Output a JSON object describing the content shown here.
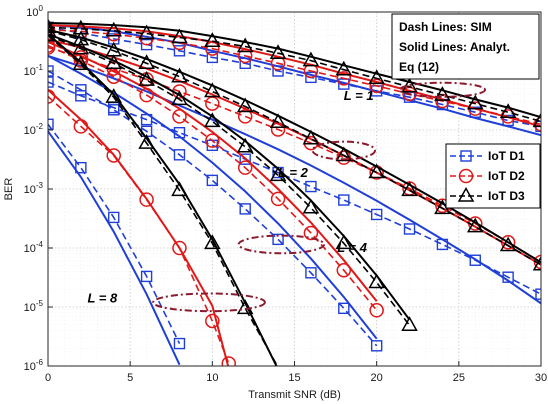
{
  "chart_data": {
    "type": "line",
    "title": "",
    "xlabel": "Transmit SNR (dB)",
    "ylabel": "BER",
    "xlim": [
      0,
      30
    ],
    "ylim": [
      1e-06,
      1
    ],
    "yscale": "log",
    "grid": true,
    "x_ticks": [
      0,
      5,
      10,
      15,
      20,
      25,
      30
    ],
    "y_ticks": [
      {
        "value": 1,
        "base": "10",
        "exp": "0"
      },
      {
        "value": 0.1,
        "base": "10",
        "exp": "-1"
      },
      {
        "value": 0.01,
        "base": "10",
        "exp": "-2"
      },
      {
        "value": 0.001,
        "base": "10",
        "exp": "-3"
      },
      {
        "value": 0.0001,
        "base": "10",
        "exp": "-4"
      },
      {
        "value": 1e-05,
        "base": "10",
        "exp": "-5"
      },
      {
        "value": 1e-06,
        "base": "10",
        "exp": "-6"
      }
    ],
    "legend": {
      "position": "right",
      "entries": [
        {
          "label": "IoT D1",
          "color": "#1f3fd8",
          "marker": "square"
        },
        {
          "label": "IoT D2",
          "color": "#e01818",
          "marker": "circle"
        },
        {
          "label": "IoT D3",
          "color": "#000000",
          "marker": "triangle"
        }
      ]
    },
    "note_lines": [
      "Dash Lines: SIM",
      "Solid Lines: Analyt.",
      "Eq (12)"
    ],
    "groups": [
      {
        "label": "L = 1",
        "label_at": [
          18.0,
          0.032
        ],
        "ellipse": {
          "cx": 24.0,
          "cy": 0.048,
          "rx_db": 2.6,
          "ry_decades": 0.12
        },
        "series": [
          {
            "device": "IoT D1",
            "color": "#1f3fd8",
            "marker": "square",
            "x": [
              0,
              2,
              4,
              6,
              8,
              10,
              12,
              14,
              16,
              18,
              20,
              22,
              24,
              26,
              28,
              30
            ],
            "sim": [
              0.55,
              0.44,
              0.35,
              0.28,
              0.22,
              0.17,
              0.135,
              0.1,
              0.078,
              0.06,
              0.046,
              0.036,
              0.027,
              0.02,
              0.0145,
              0.0115
            ],
            "analytic": [
              0.6,
              0.55,
              0.47,
              0.38,
              0.3,
              0.22,
              0.165,
              0.12,
              0.086,
              0.063,
              0.045,
              0.032,
              0.023,
              0.016,
              0.0115,
              0.0082
            ]
          },
          {
            "device": "IoT D2",
            "color": "#e01818",
            "marker": "circle",
            "x": [
              0,
              2,
              4,
              6,
              8,
              10,
              12,
              14,
              16,
              18,
              20,
              22,
              24,
              26,
              28,
              30
            ],
            "sim": [
              0.5,
              0.47,
              0.42,
              0.36,
              0.3,
              0.24,
              0.18,
              0.135,
              0.1,
              0.075,
              0.056,
              0.041,
              0.031,
              0.023,
              0.017,
              0.0125
            ],
            "analytic": [
              0.6,
              0.57,
              0.53,
              0.47,
              0.39,
              0.31,
              0.235,
              0.175,
              0.128,
              0.09,
              0.065,
              0.046,
              0.033,
              0.023,
              0.0165,
              0.0115
            ]
          },
          {
            "device": "IoT D3",
            "color": "#000000",
            "marker": "triangle",
            "x": [
              0,
              2,
              4,
              6,
              8,
              10,
              12,
              14,
              16,
              18,
              20,
              22,
              24,
              26,
              28,
              30
            ],
            "sim": [
              0.55,
              0.52,
              0.48,
              0.43,
              0.37,
              0.32,
              0.26,
              0.2,
              0.15,
              0.105,
              0.075,
              0.054,
              0.039,
              0.028,
              0.02,
              0.014
            ],
            "analytic": [
              0.65,
              0.63,
              0.6,
              0.55,
              0.48,
              0.39,
              0.31,
              0.24,
              0.175,
              0.125,
              0.09,
              0.065,
              0.047,
              0.033,
              0.024,
              0.0165
            ]
          }
        ]
      },
      {
        "label": "L = 2",
        "label_at": [
          14.0,
          0.0016
        ],
        "ellipse": {
          "cx": 18.0,
          "cy": 0.0045,
          "rx_db": 1.9,
          "ry_decades": 0.15
        },
        "series": [
          {
            "device": "IoT D1",
            "color": "#1f3fd8",
            "marker": "square",
            "x": [
              0,
              2,
              4,
              6,
              8,
              10,
              12,
              14,
              16,
              18,
              20,
              22,
              24,
              26,
              28,
              30
            ],
            "sim": [
              0.065,
              0.038,
              0.024,
              0.015,
              0.009,
              0.0055,
              0.0032,
              0.0019,
              0.0011,
              0.00065,
              0.00037,
              0.00021,
              0.000115,
              6.2e-05,
              3.2e-05,
              1.65e-05
            ],
            "analytic": [
              0.18,
              0.12,
              0.075,
              0.045,
              0.026,
              0.015,
              0.0085,
              0.0047,
              0.0025,
              0.00128,
              0.00063,
              0.0003,
              0.00014,
              6.4e-05,
              2.8e-05,
              1.15e-05
            ]
          },
          {
            "device": "IoT D2",
            "color": "#e01818",
            "marker": "circle",
            "x": [
              0,
              2,
              4,
              6,
              8,
              10,
              12,
              14,
              16,
              18,
              20,
              22,
              24,
              26,
              28,
              30
            ],
            "sim": [
              0.25,
              0.17,
              0.11,
              0.072,
              0.045,
              0.028,
              0.017,
              0.0102,
              0.006,
              0.0034,
              0.0019,
              0.00102,
              0.00052,
              0.00026,
              0.000125,
              5.8e-05
            ],
            "analytic": [
              0.34,
              0.25,
              0.17,
              0.11,
              0.068,
              0.04,
              0.023,
              0.0128,
              0.007,
              0.0037,
              0.0019,
              0.00095,
              0.00047,
              0.00023,
              0.00011,
              5.2e-05
            ]
          },
          {
            "device": "IoT D3",
            "color": "#000000",
            "marker": "triangle",
            "x": [
              0,
              2,
              4,
              6,
              8,
              10,
              12,
              14,
              16,
              18,
              20,
              22,
              24,
              26,
              28,
              30
            ],
            "sim": [
              0.48,
              0.34,
              0.22,
              0.135,
              0.08,
              0.045,
              0.025,
              0.0135,
              0.0071,
              0.0037,
              0.0019,
              0.00095,
              0.00047,
              0.00023,
              0.00011,
              5.2e-05
            ],
            "analytic": [
              0.5,
              0.37,
              0.25,
              0.16,
              0.097,
              0.057,
              0.032,
              0.0175,
              0.0093,
              0.0048,
              0.0024,
              0.00118,
              0.00057,
              0.00027,
              0.000125,
              5.7e-05
            ]
          }
        ]
      },
      {
        "label": "L = 4",
        "label_at": [
          17.6,
          8.5e-05
        ],
        "ellipse": {
          "cx": 14.2,
          "cy": 0.000115,
          "rx_db": 2.6,
          "ry_decades": 0.15
        },
        "series": [
          {
            "device": "IoT D1",
            "color": "#1f3fd8",
            "marker": "square",
            "x": [
              0,
              2,
              4,
              6,
              8,
              10,
              12,
              14,
              16,
              18,
              20
            ],
            "sim": [
              0.1,
              0.048,
              0.022,
              0.0095,
              0.0038,
              0.0014,
              0.00046,
              0.00014,
              3.8e-05,
              9.5e-06,
              2.2e-06
            ],
            "analytic": [
              0.18,
              0.09,
              0.043,
              0.019,
              0.0078,
              0.0028,
              0.00091,
              0.00026,
              6.6e-05,
              1.48e-05,
              2.9e-06
            ]
          },
          {
            "device": "IoT D2",
            "color": "#e01818",
            "marker": "circle",
            "x": [
              0,
              2,
              4,
              6,
              8,
              10,
              12,
              14,
              16,
              18,
              20
            ],
            "sim": [
              0.27,
              0.15,
              0.08,
              0.039,
              0.017,
              0.0066,
              0.0023,
              0.00068,
              0.00018,
              4.2e-05,
              8.8e-06
            ],
            "analytic": [
              0.31,
              0.18,
              0.099,
              0.05,
              0.023,
              0.0093,
              0.0033,
              0.001,
              0.00027,
              6.2e-05,
              1.25e-05
            ]
          },
          {
            "device": "IoT D3",
            "color": "#000000",
            "marker": "triangle",
            "x": [
              0,
              2,
              4,
              6,
              8,
              10,
              12,
              14,
              16,
              18,
              20,
              22
            ],
            "sim": [
              0.4,
              0.24,
              0.135,
              0.07,
              0.033,
              0.014,
              0.0052,
              0.0017,
              0.00048,
              0.00012,
              2.6e-05,
              4.9e-06
            ],
            "analytic": [
              0.42,
              0.26,
              0.15,
              0.08,
              0.039,
              0.017,
              0.0065,
              0.0022,
              0.00064,
              0.00016,
              3.4e-05,
              6.1e-06
            ]
          }
        ]
      },
      {
        "label": "L = 8",
        "label_at": [
          2.4,
          1.2e-05
        ],
        "ellipse": {
          "cx": 9.8,
          "cy": 1.2e-05,
          "rx_db": 3.4,
          "ry_decades": 0.15
        },
        "series": [
          {
            "device": "IoT D1",
            "color": "#1f3fd8",
            "marker": "square",
            "x": [
              0,
              2,
              4,
              6,
              8
            ],
            "sim": [
              0.0125,
              0.0023,
              0.00033,
              3.3e-05,
              2.4e-06
            ],
            "analytic": [
              0.0095,
              0.0016,
              0.00019,
              1.65e-05,
              1.05e-06
            ]
          },
          {
            "device": "IoT D2",
            "color": "#e01818",
            "marker": "circle",
            "x": [
              0,
              2,
              4,
              6,
              8,
              10,
              11
            ],
            "sim": [
              0.037,
              0.0115,
              0.0037,
              0.00066,
              0.0001,
              5.8e-06,
              1.1e-06
            ],
            "analytic": [
              0.048,
              0.015,
              0.0038,
              0.00068,
              0.0001,
              1.05e-05,
              9e-07
            ]
          },
          {
            "device": "IoT D3",
            "color": "#000000",
            "marker": "triangle",
            "x": [
              0,
              2,
              4,
              6,
              8,
              10,
              12,
              14
            ],
            "sim": [
              0.4,
              0.13,
              0.036,
              0.006,
              0.00095,
              0.00012,
              9.5e-06,
              9.5e-07
            ],
            "analytic": [
              0.42,
              0.14,
              0.04,
              0.0072,
              0.0012,
              0.00014,
              1.18e-05,
              8.8e-07
            ]
          }
        ]
      }
    ]
  }
}
